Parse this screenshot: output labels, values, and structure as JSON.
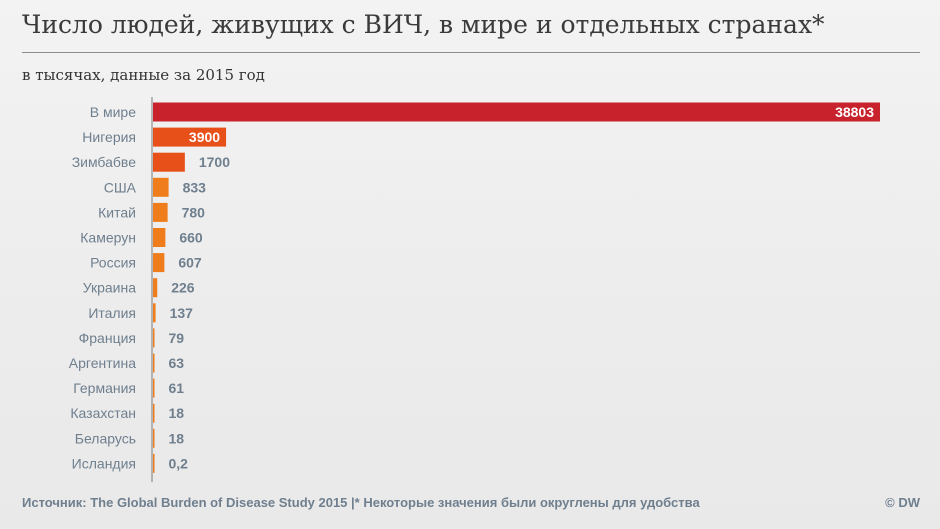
{
  "header": {
    "title": "Число людей, живущих с ВИЧ, в мире и отдельных странах*",
    "subtitle": "в тысячах, данные за 2015 год"
  },
  "footer": {
    "source": "Источник: The Global Burden of Disease Study 2015 |* Некоторые значения были округлены для удобства",
    "copyright": "© DW"
  },
  "chart_data": {
    "type": "bar",
    "orientation": "horizontal",
    "categories": [
      "В мире",
      "Нигерия",
      "Зимбабве",
      "США",
      "Китай",
      "Камерун",
      "Россия",
      "Украина",
      "Италия",
      "Франция",
      "Аргентина",
      "Германия",
      "Казахстан",
      "Беларусь",
      "Исландия"
    ],
    "values": [
      38803,
      3900,
      1700,
      833,
      780,
      660,
      607,
      226,
      137,
      79,
      63,
      61,
      18,
      18,
      0.2
    ],
    "value_labels": [
      "38803",
      "3900",
      "1700",
      "833",
      "780",
      "660",
      "607",
      "226",
      "137",
      "79",
      "63",
      "61",
      "18",
      "18",
      "0,2"
    ],
    "xlim": [
      0,
      38803
    ],
    "grid": false,
    "colors": {
      "world": "#c8232c",
      "highlight": "#e8501a",
      "countries": "#f07d1c",
      "value_text": "#6f7f8e",
      "category_text": "#6f7f8e",
      "axis": "#7a7a7a"
    }
  }
}
